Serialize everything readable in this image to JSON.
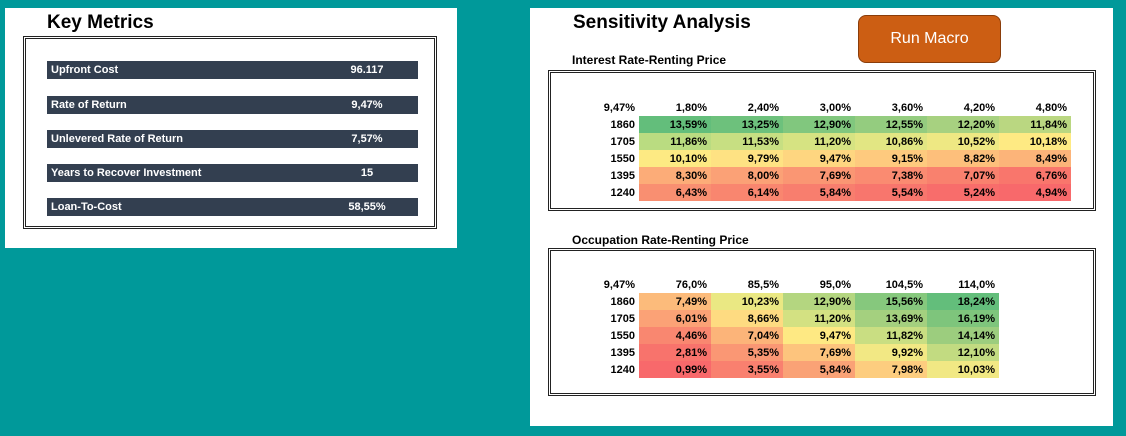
{
  "key_metrics": {
    "title": "Key Metrics",
    "rows": [
      {
        "label": "Upfront Cost",
        "value": "96.117"
      },
      {
        "label": "Rate of Return",
        "value": "9,47%"
      },
      {
        "label": "Unlevered Rate of Return",
        "value": "7,57%"
      },
      {
        "label": "Years to Recover Investment",
        "value": "15"
      },
      {
        "label": "Loan-To-Cost",
        "value": "58,55%"
      }
    ]
  },
  "sensitivity": {
    "title": "Sensitivity Analysis",
    "run_macro_label": "Run Macro",
    "table1": {
      "title": "Interest Rate-Renting Price",
      "corner": "9,47%",
      "col_headers": [
        "1,80%",
        "2,40%",
        "3,00%",
        "3,60%",
        "4,20%",
        "4,80%"
      ],
      "rows": [
        {
          "header": "1860",
          "values": [
            "13,59%",
            "13,25%",
            "12,90%",
            "12,55%",
            "12,20%",
            "11,84%"
          ],
          "colors": [
            "#63be7b",
            "#6dc17c",
            "#81c77e",
            "#94cc7f",
            "#a7d180",
            "#bad781"
          ]
        },
        {
          "header": "1705",
          "values": [
            "11,86%",
            "11,53%",
            "11,20%",
            "10,86%",
            "10,52%",
            "10,18%"
          ],
          "colors": [
            "#badc81",
            "#c7df82",
            "#d6e382",
            "#e2e683",
            "#eee883",
            "#feea83"
          ]
        },
        {
          "header": "1550",
          "values": [
            "10,10%",
            "9,79%",
            "9,47%",
            "9,15%",
            "8,82%",
            "8,49%"
          ],
          "colors": [
            "#fdea83",
            "#fee283",
            "#fed680",
            "#feca7e",
            "#fdbf7b",
            "#fcb479"
          ]
        },
        {
          "header": "1395",
          "values": [
            "8,30%",
            "8,00%",
            "7,69%",
            "7,38%",
            "7,07%",
            "6,76%"
          ],
          "colors": [
            "#fcac78",
            "#fba176",
            "#fa9673",
            "#fa8b71",
            "#f9816e",
            "#f9766c"
          ]
        },
        {
          "header": "1240",
          "values": [
            "6,43%",
            "6,14%",
            "5,84%",
            "5,54%",
            "5,24%",
            "4,94%"
          ],
          "colors": [
            "#f98f71",
            "#f9866f",
            "#f87e6e",
            "#f8766d",
            "#f86d6b",
            "#f8696b"
          ]
        }
      ]
    },
    "table2": {
      "title": "Occupation Rate-Renting Price",
      "corner": "9,47%",
      "col_headers": [
        "76,0%",
        "85,5%",
        "95,0%",
        "104,5%",
        "114,0%"
      ],
      "rows": [
        {
          "header": "1860",
          "values": [
            "7,49%",
            "10,23%",
            "12,90%",
            "15,56%",
            "18,24%"
          ],
          "colors": [
            "#fcbb7b",
            "#eae883",
            "#b4d680",
            "#86c87d",
            "#63be7b"
          ]
        },
        {
          "header": "1705",
          "values": [
            "6,01%",
            "8,66%",
            "11,20%",
            "13,69%",
            "16,19%"
          ],
          "colors": [
            "#fba276",
            "#fedb81",
            "#d3e182",
            "#a4d07f",
            "#7ec57c"
          ]
        },
        {
          "header": "1550",
          "values": [
            "4,46%",
            "7,04%",
            "9,47%",
            "11,82%",
            "14,14%"
          ],
          "colors": [
            "#f98770",
            "#fcb479",
            "#fee983",
            "#c9de82",
            "#9ccd7e"
          ]
        },
        {
          "header": "1395",
          "values": [
            "2,81%",
            "5,35%",
            "7,69%",
            "9,92%",
            "12,10%"
          ],
          "colors": [
            "#f8736c",
            "#fa9774",
            "#fdc47d",
            "#f2e884",
            "#c2db81"
          ]
        },
        {
          "header": "1240",
          "values": [
            "0,99%",
            "3,55%",
            "5,84%",
            "7,98%",
            "10,03%"
          ],
          "colors": [
            "#f8696b",
            "#f9806f",
            "#faa276",
            "#fdcd7f",
            "#f1e884"
          ]
        }
      ]
    }
  }
}
